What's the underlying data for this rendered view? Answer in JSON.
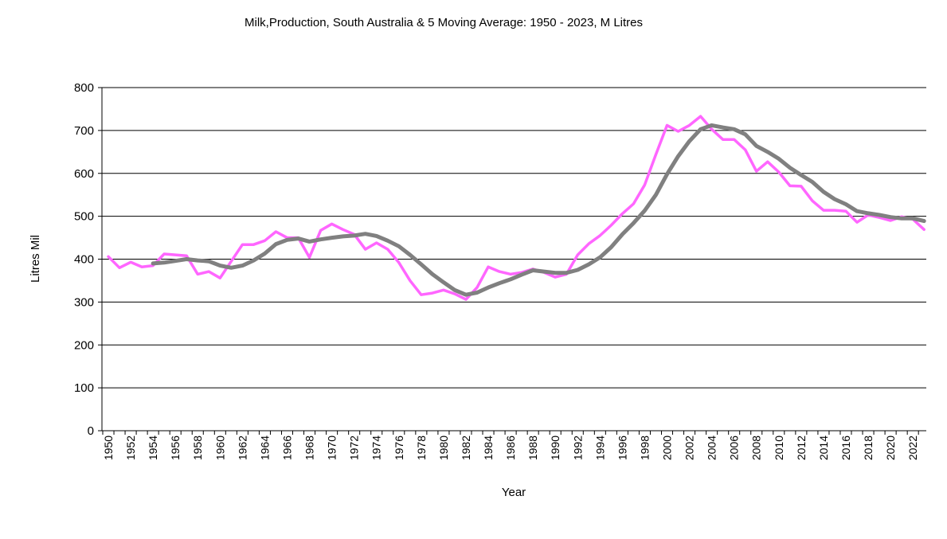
{
  "chart_data": {
    "type": "line",
    "title": "Milk,Production, South Australia & 5 Moving Average: 1950 - 2023, M Litres",
    "xlabel": "Year",
    "ylabel": "Litres Mil",
    "ylim": [
      0,
      800
    ],
    "yticks": [
      0,
      100,
      200,
      300,
      400,
      500,
      600,
      700,
      800
    ],
    "xlim": [
      1950,
      2023
    ],
    "xtick_step": 2,
    "grid": "horizontal",
    "series": [
      {
        "name": "Milk Production",
        "color": "#ff66ff",
        "start_year": 1950,
        "values": [
          406,
          380,
          393,
          382,
          385,
          412,
          410,
          408,
          365,
          371,
          356,
          395,
          434,
          434,
          443,
          464,
          450,
          450,
          404,
          467,
          482,
          469,
          458,
          423,
          438,
          423,
          392,
          350,
          317,
          321,
          328,
          319,
          306,
          334,
          382,
          371,
          365,
          369,
          377,
          369,
          358,
          365,
          410,
          436,
          455,
          479,
          506,
          529,
          573,
          644,
          712,
          698,
          712,
          733,
          703,
          679,
          679,
          655,
          605,
          627,
          603,
          571,
          570,
          536,
          514,
          514,
          512,
          486,
          503,
          497,
          490,
          499,
          493,
          469
        ]
      },
      {
        "name": "5 Moving Average",
        "color": "#808080",
        "start_year": 1954,
        "values": [
          390,
          392,
          396,
          400,
          397,
          395,
          385,
          380,
          385,
          397,
          413,
          435,
          445,
          448,
          441,
          446,
          450,
          453,
          455,
          459,
          454,
          443,
          430,
          410,
          388,
          365,
          346,
          328,
          317,
          322,
          334,
          344,
          353,
          364,
          374,
          371,
          368,
          368,
          375,
          388,
          404,
          428,
          458,
          484,
          513,
          550,
          598,
          640,
          675,
          703,
          712,
          707,
          703,
          691,
          664,
          650,
          634,
          613,
          596,
          580,
          557,
          540,
          528,
          512,
          507,
          503,
          498,
          495,
          495,
          489
        ]
      }
    ]
  }
}
